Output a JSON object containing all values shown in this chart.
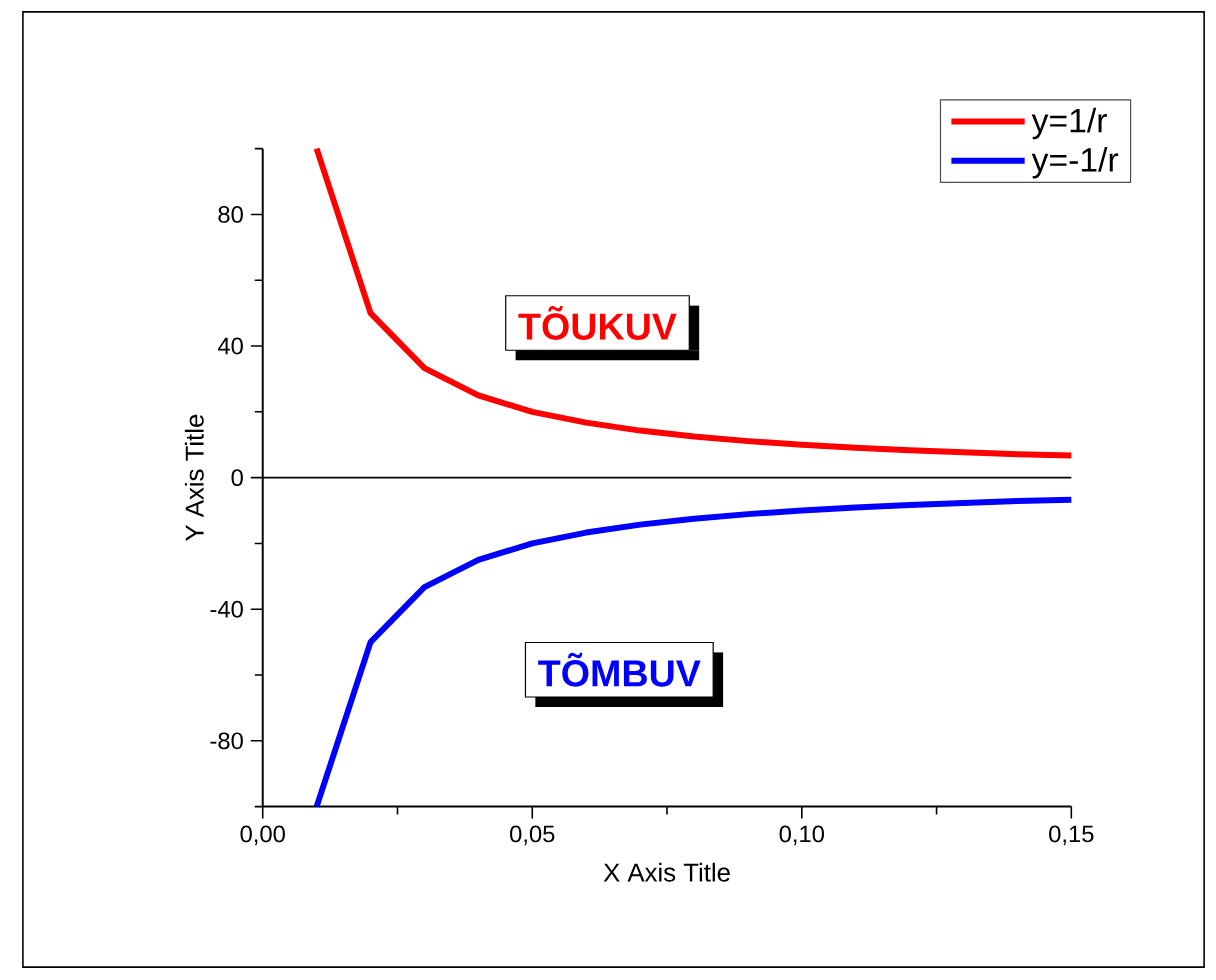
{
  "chart_data": {
    "type": "line",
    "xlabel": "X Axis Title",
    "ylabel": "Y Axis Title",
    "x": [
      0.01,
      0.02,
      0.03,
      0.04,
      0.05,
      0.06,
      0.07,
      0.08,
      0.09,
      0.1,
      0.11,
      0.12,
      0.13,
      0.14,
      0.15
    ],
    "series": [
      {
        "name": "y=1/r",
        "color": "#ff0000",
        "values": [
          100,
          50,
          33.3,
          25,
          20,
          16.7,
          14.3,
          12.5,
          11.1,
          10,
          9.1,
          8.3,
          7.7,
          7.1,
          6.7
        ]
      },
      {
        "name": "y=-1/r",
        "color": "#0000ff",
        "values": [
          -100,
          -50,
          -33.3,
          -25,
          -20,
          -16.7,
          -14.3,
          -12.5,
          -11.1,
          -10,
          -9.1,
          -8.3,
          -7.7,
          -7.1,
          -6.7
        ]
      }
    ],
    "xlim": [
      0,
      0.15
    ],
    "ylim": [
      -100,
      100
    ],
    "xticks": [
      {
        "value": 0,
        "label": "0,00"
      },
      {
        "value": 0.025,
        "label": null
      },
      {
        "value": 0.05,
        "label": "0,05"
      },
      {
        "value": 0.075,
        "label": null
      },
      {
        "value": 0.1,
        "label": "0,10"
      },
      {
        "value": 0.125,
        "label": null
      },
      {
        "value": 0.15,
        "label": "0,15"
      }
    ],
    "yticks": [
      {
        "value": -100,
        "label": null
      },
      -80,
      {
        "value": -60,
        "label": null
      },
      -40,
      {
        "value": -20,
        "label": null
      },
      0,
      {
        "value": 20,
        "label": null
      },
      40,
      {
        "value": 60,
        "label": null
      },
      80,
      {
        "value": 100,
        "label": null
      }
    ],
    "ref_lines": [
      {
        "axis": "y",
        "value": 0,
        "color": "#000000"
      }
    ],
    "annotations": [
      "TÕUKUV",
      "TÕMBUV"
    ],
    "legend": "top right",
    "grid": false,
    "marker": "none",
    "line_style": "solid"
  }
}
